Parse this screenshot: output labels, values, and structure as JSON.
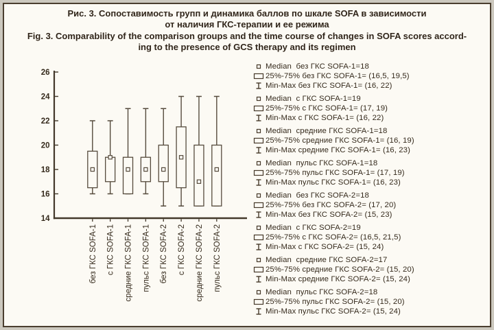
{
  "figure": {
    "title_ru_line1": "Рис. 3.  Сопоставимость групп и динамика баллов по шкале SOFA в зависимости",
    "title_ru_line2": "от наличия ГКС-терапии и ее режима",
    "title_en_line1": "Fig. 3. Comparability of the comparison groups and the time course of changes in SOFA scores accord-",
    "title_en_line2": "ing to the presence of GCS therapy and its regimen"
  },
  "colors": {
    "ink": "#352a1c",
    "axis": "#43382a",
    "box_stroke": "#554a3c",
    "fill": "#fcfaf4",
    "frame_border": "#4a3e2e",
    "outer_margin": "#ccc8be"
  },
  "chart_data": {
    "type": "box",
    "title": "",
    "xlabel": "",
    "ylabel": "",
    "ylim": [
      14,
      26
    ],
    "yticks": [
      14,
      16,
      18,
      20,
      22,
      24,
      26
    ],
    "grid": false,
    "legend_position": "right",
    "categories": [
      "без ГКС SOFA-1",
      "с ГКС SOFA-1",
      "средние ГКС SOFA-1",
      "пульс ГКС SOFA-1",
      "без ГКС SOFA-2",
      "с ГКС SOFA-2",
      "средние ГКС SOFA-2",
      "пульс ГКС SOFA-2"
    ],
    "series": [
      {
        "name": "без ГКС SOFA-1",
        "median": 18,
        "q1": 16.5,
        "q3": 19.5,
        "min": 16,
        "max": 22
      },
      {
        "name": "с ГКС SOFA-1",
        "median": 19,
        "q1": 17,
        "q3": 19,
        "min": 16,
        "max": 22
      },
      {
        "name": "средние ГКС SOFA-1",
        "median": 18,
        "q1": 16,
        "q3": 19,
        "min": 16,
        "max": 23
      },
      {
        "name": "пульс ГКС SOFA-1",
        "median": 18,
        "q1": 17,
        "q3": 19,
        "min": 16,
        "max": 23
      },
      {
        "name": "без ГКС SOFA-2",
        "median": 18,
        "q1": 17,
        "q3": 20,
        "min": 15,
        "max": 23
      },
      {
        "name": "с ГКС SOFA-2",
        "median": 19,
        "q1": 16.5,
        "q3": 21.5,
        "min": 15,
        "max": 24
      },
      {
        "name": "средние ГКС SOFA-2",
        "median": 17,
        "q1": 15,
        "q3": 20,
        "min": 15,
        "max": 24
      },
      {
        "name": "пульс ГКС SOFA-2",
        "median": 18,
        "q1": 15,
        "q3": 20,
        "min": 15,
        "max": 24
      }
    ]
  },
  "legend": {
    "groups": [
      [
        {
          "icon": "median-square-icon",
          "text": "Median  без ГКС SOFA-1=18"
        },
        {
          "icon": "quartile-box-icon",
          "text": "25%-75% без ГКС SOFA-1= (16,5, 19,5)"
        },
        {
          "icon": "min-max-whisker-icon",
          "text": "Min-Max без ГКС SOFA-1= (16, 22)"
        }
      ],
      [
        {
          "icon": "median-square-icon",
          "text": "Median  с ГКС SOFA-1=19"
        },
        {
          "icon": "quartile-box-icon",
          "text": "25%-75% с ГКС SOFA-1= (17, 19)"
        },
        {
          "icon": "min-max-whisker-icon",
          "text": "Min-Max с ГКС SOFA-1= (16, 22)"
        }
      ],
      [
        {
          "icon": "median-square-icon",
          "text": "Median  средние ГКС SOFA-1=18"
        },
        {
          "icon": "quartile-box-icon",
          "text": "25%-75% средние ГКС SOFA-1= (16, 19)"
        },
        {
          "icon": "min-max-whisker-icon",
          "text": "Min-Max средние ГКС SOFA-1= (16, 23)"
        }
      ],
      [
        {
          "icon": "median-square-icon",
          "text": "Median  пульс ГКС SOFA-1=18"
        },
        {
          "icon": "quartile-box-icon",
          "text": "25%-75% пульс ГКС SOFA-1= (17, 19)"
        },
        {
          "icon": "min-max-whisker-icon",
          "text": "Min-Max пульс ГКС SOFA-1= (16, 23)"
        }
      ],
      [
        {
          "icon": "median-square-icon",
          "text": "Median  без ГКС SOFA-2=18"
        },
        {
          "icon": "quartile-box-icon",
          "text": "25%-75% без ГКС SOFA-2= (17, 20)"
        },
        {
          "icon": "min-max-whisker-icon",
          "text": "Min-Max без ГКС SOFA-2= (15, 23)"
        }
      ],
      [
        {
          "icon": "median-square-icon",
          "text": "Median  с ГКС SOFA-2=19"
        },
        {
          "icon": "quartile-box-icon",
          "text": "25%-75% с ГКС SOFA-2= (16,5, 21,5)"
        },
        {
          "icon": "min-max-whisker-icon",
          "text": "Min-Max с ГКС SOFA-2= (15, 24)"
        }
      ],
      [
        {
          "icon": "median-square-icon",
          "text": "Median  средние ГКС SOFA-2=17"
        },
        {
          "icon": "quartile-box-icon",
          "text": "25%-75% средние ГКС SOFA-2= (15, 20)"
        },
        {
          "icon": "min-max-whisker-icon",
          "text": "Min-Max средние ГКС SOFA-2= (15, 24)"
        }
      ],
      [
        {
          "icon": "median-square-icon",
          "text": "Median  пульс ГКС SOFA-2=18"
        },
        {
          "icon": "quartile-box-icon",
          "text": "25%-75% пульс ГКС SOFA-2= (15, 20)"
        },
        {
          "icon": "min-max-whisker-icon",
          "text": "Min-Max пульс ГКС SOFA-2= (15, 24)"
        }
      ]
    ]
  }
}
